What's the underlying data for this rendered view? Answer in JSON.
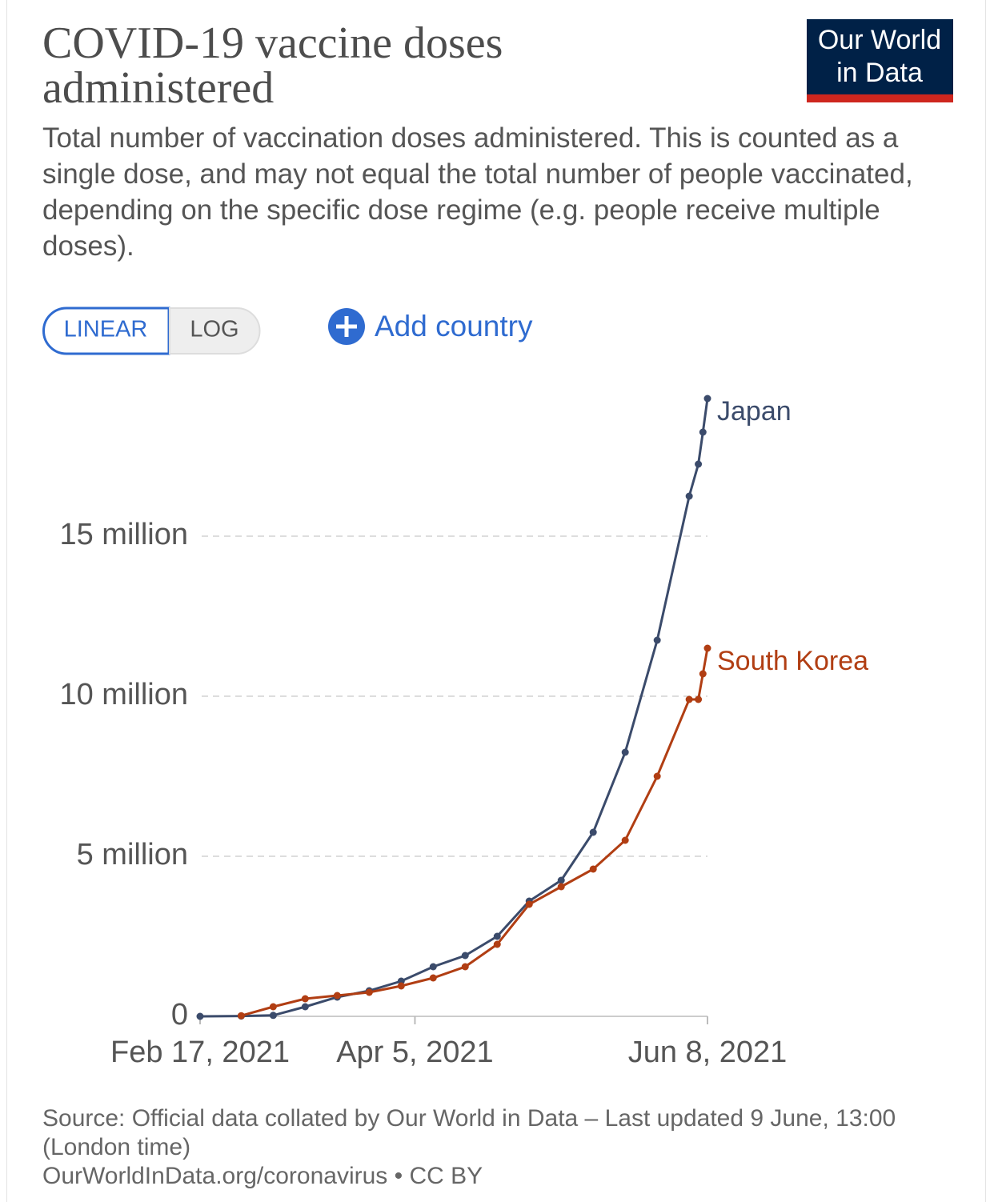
{
  "logo": [
    "Our World",
    "in Data"
  ],
  "controls": {
    "linear": "LINEAR",
    "log": "LOG",
    "add": "Add country"
  },
  "chart_data": {
    "type": "line",
    "title": "COVID-19 vaccine doses administered",
    "subtitle": "Total number of vaccination doses administered. This is counted as a single dose, and may not equal the total number of people vaccinated, depending on the specific dose regime (e.g. people receive multiple doses).",
    "x": [
      "2021-02-17",
      "2021-02-26",
      "2021-03-05",
      "2021-03-12",
      "2021-03-19",
      "2021-03-26",
      "2021-04-02",
      "2021-04-09",
      "2021-04-16",
      "2021-04-23",
      "2021-04-30",
      "2021-05-07",
      "2021-05-14",
      "2021-05-21",
      "2021-05-28",
      "2021-06-04",
      "2021-06-06",
      "2021-06-07",
      "2021-06-08"
    ],
    "series": [
      {
        "name": "Japan",
        "color": "#3b4b6b",
        "values": [
          0,
          10000,
          30000,
          300000,
          600000,
          800000,
          1100000,
          1550000,
          1900000,
          2500000,
          3600000,
          4250000,
          5750000,
          8250000,
          11750000,
          16250000,
          17250000,
          18250000,
          19300000
        ]
      },
      {
        "name": "South Korea",
        "color": "#b13e13",
        "values": [
          null,
          20000,
          300000,
          550000,
          650000,
          750000,
          950000,
          1200000,
          1550000,
          2250000,
          3500000,
          4050000,
          4600000,
          5500000,
          7500000,
          9900000,
          9900000,
          10700000,
          11500000
        ]
      }
    ],
    "xlim": [
      "2021-02-17",
      "2021-06-08"
    ],
    "xticks": [
      {
        "value": "2021-02-17",
        "label": "Feb 17, 2021"
      },
      {
        "value": "2021-04-05",
        "label": "Apr 5, 2021"
      },
      {
        "value": "2021-06-08",
        "label": "Jun 8, 2021"
      }
    ],
    "ylim": [
      0,
      19500000
    ],
    "yticks": [
      0,
      {
        "value": 5000000,
        "label": "5 million"
      },
      {
        "value": 10000000,
        "label": "10 million"
      },
      {
        "value": 15000000,
        "label": "15 million"
      }
    ],
    "grid": true,
    "source": "Source: Official data collated by Our World in Data – Last updated 9 June, 13:00 (London time)",
    "footer": "OurWorldInData.org/coronavirus • CC BY"
  }
}
